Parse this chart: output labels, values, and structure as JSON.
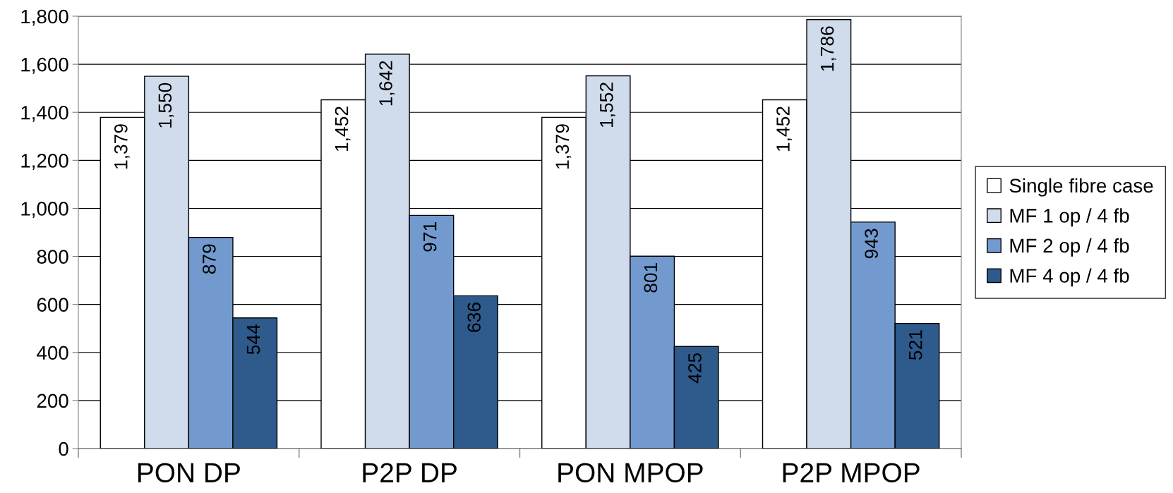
{
  "chart_data": {
    "type": "bar",
    "categories": [
      "PON DP",
      "P2P DP",
      "PON MPOP",
      "P2P MPOP"
    ],
    "series": [
      {
        "name": "Single fibre case",
        "color": "#ffffff",
        "values": [
          1379,
          1452,
          1379,
          1452
        ],
        "value_labels": [
          "1,379",
          "1,452",
          "1,379",
          "1,452"
        ]
      },
      {
        "name": "MF 1 op / 4 fb",
        "color": "#d0dcec",
        "values": [
          1550,
          1642,
          1552,
          1786
        ],
        "value_labels": [
          "1,550",
          "1,642",
          "1,552",
          "1,786"
        ]
      },
      {
        "name": "MF 2 op / 4 fb",
        "color": "#729acf",
        "values": [
          879,
          971,
          801,
          943
        ],
        "value_labels": [
          "879",
          "971",
          "801",
          "943"
        ]
      },
      {
        "name": "MF 4 op / 4 fb",
        "color": "#2f5a8c",
        "values": [
          544,
          636,
          425,
          521
        ],
        "value_labels": [
          "544",
          "636",
          "425",
          "521"
        ]
      }
    ],
    "ylim": [
      0,
      1800
    ],
    "yticks": [
      0,
      200,
      400,
      600,
      800,
      {
        "value": 1000,
        "label": "1,000"
      },
      {
        "value": 1200,
        "label": "1,200"
      },
      {
        "value": 1400,
        "label": "1,400"
      },
      {
        "value": 1600,
        "label": "1,600"
      },
      {
        "value": 1800,
        "label": "1,800"
      }
    ],
    "grid": "y",
    "legend": "right"
  }
}
